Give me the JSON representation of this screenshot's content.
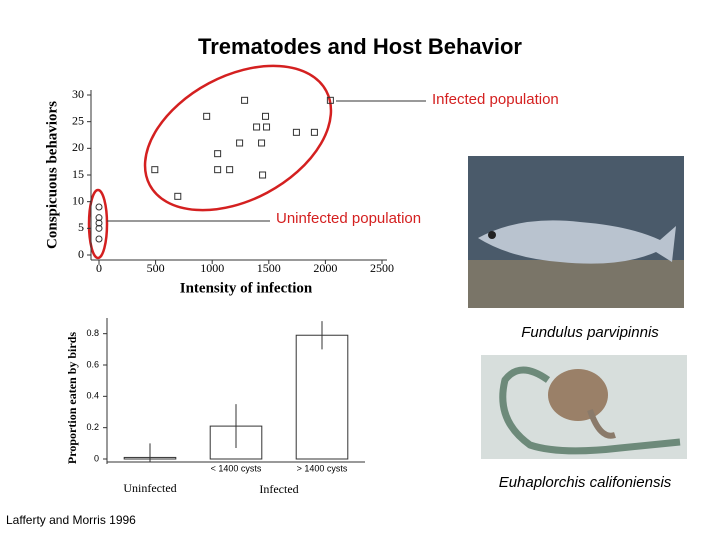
{
  "title": "Trematodes and Host Behavior",
  "annotations": [
    "Infected population",
    "Uninfected population"
  ],
  "captions": [
    "Fundulus parvipinnis",
    "Euhaplorchis califoniensis"
  ],
  "citation": "Lafferty and Morris 1996",
  "chart_data": [
    {
      "type": "scatter",
      "xlabel": "Intensity of infection",
      "ylabel": "Conspicuous behaviors",
      "xlim": [
        0,
        2500
      ],
      "ylim": [
        0,
        30
      ],
      "xticks": [
        0,
        500,
        1000,
        1500,
        2000,
        2500
      ],
      "yticks": [
        0,
        5,
        10,
        15,
        20,
        25,
        30
      ],
      "series": [
        {
          "marker": "square",
          "color": "#333333",
          "x": [
            1286,
            2044,
            951,
            1471,
            1392,
            1480,
            1744,
            1903,
            1242,
            1436,
            1048,
            493,
            1048,
            1154,
            1445,
            696
          ],
          "values": [
            29,
            29,
            26,
            26,
            24,
            24,
            23,
            23,
            21,
            21,
            19,
            16,
            16,
            16,
            15,
            11
          ]
        },
        {
          "marker": "circle",
          "color": "#333333",
          "x": [
            0,
            0,
            0,
            0,
            0
          ],
          "values": [
            9,
            7,
            6,
            5,
            3
          ]
        }
      ]
    },
    {
      "type": "bar",
      "ylabel": "Proportion eaten by birds",
      "group_label": "Infected",
      "categories": [
        "Uninfected",
        "< 1400 cysts",
        "> 1400 cysts"
      ],
      "values": [
        0.01,
        0.21,
        0.79
      ],
      "errors": [
        0.09,
        0.14,
        0.09
      ],
      "ylim": [
        0,
        0.9
      ],
      "yticks": [
        0,
        0.2,
        0.4,
        0.6,
        0.8
      ],
      "color": "#ffffff"
    }
  ]
}
